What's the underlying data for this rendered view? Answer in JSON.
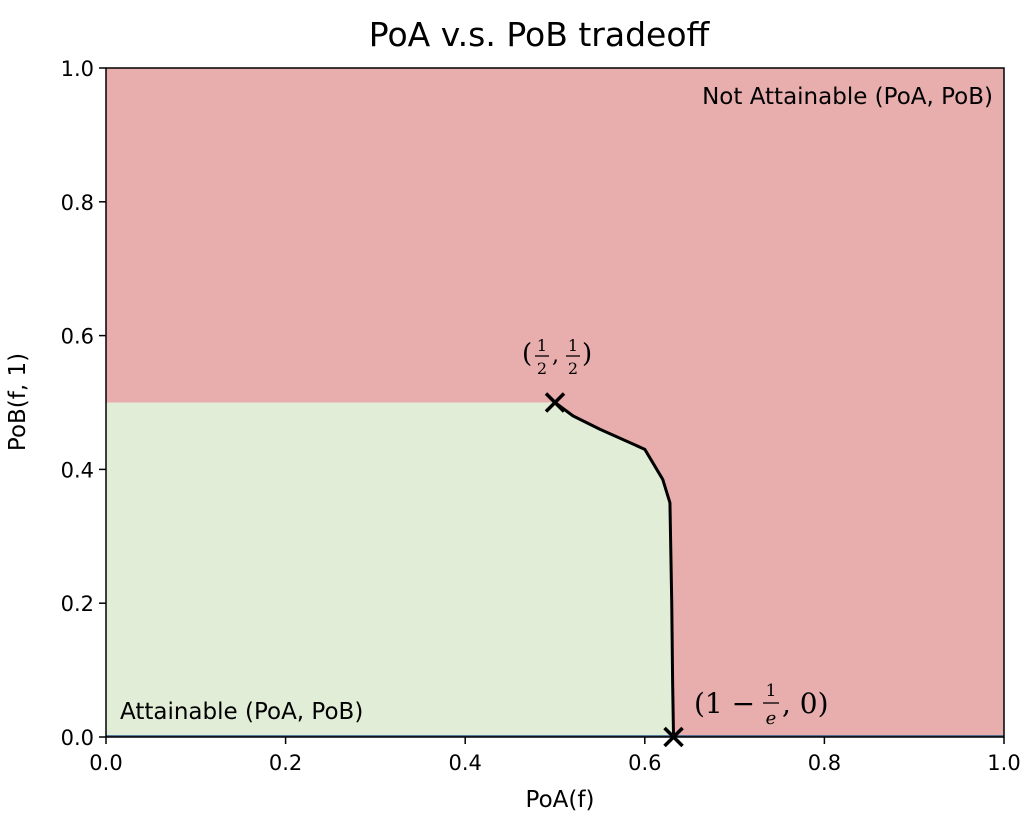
{
  "chart_data": {
    "type": "area",
    "title": "PoA v.s. PoB tradeoff",
    "xlabel": "PoA(f)",
    "ylabel": "PoB(f, 1)",
    "xlim": [
      0.0,
      1.0
    ],
    "ylim": [
      0.0,
      1.0
    ],
    "xticks": [
      "0.0",
      "0.2",
      "0.4",
      "0.6",
      "0.8",
      "1.0"
    ],
    "yticks": [
      "0.0",
      "0.2",
      "0.4",
      "0.6",
      "0.8",
      "1.0"
    ],
    "grid": false,
    "legend": "none",
    "regions": [
      {
        "label": "Not Attainable (PoA, PoB)",
        "color": "#e8adad"
      },
      {
        "label": "Attainable (PoA, PoB)",
        "color": "#e1edd7"
      }
    ],
    "frontier": {
      "x": [
        0.5,
        0.52,
        0.55,
        0.6,
        0.62,
        0.628,
        0.63,
        0.631,
        0.632
      ],
      "y": [
        0.5,
        0.48,
        0.46,
        0.43,
        0.385,
        0.35,
        0.2,
        0.08,
        0.0
      ],
      "color": "#000000"
    },
    "markers": [
      {
        "x": 0.5,
        "y": 0.5,
        "label": "(1/2, 1/2)"
      },
      {
        "x": 0.632,
        "y": 0.0,
        "label": "(1 − 1/e, 0)"
      }
    ],
    "annotations": {
      "marker1": {
        "open": "(",
        "n1": "1",
        "d1": "2",
        "comma": ",",
        "n2": "1",
        "d2": "2",
        "close": ")"
      },
      "marker2": {
        "open": "(1 −",
        "n": "1",
        "d": "e",
        "rest": ", 0)"
      }
    }
  }
}
